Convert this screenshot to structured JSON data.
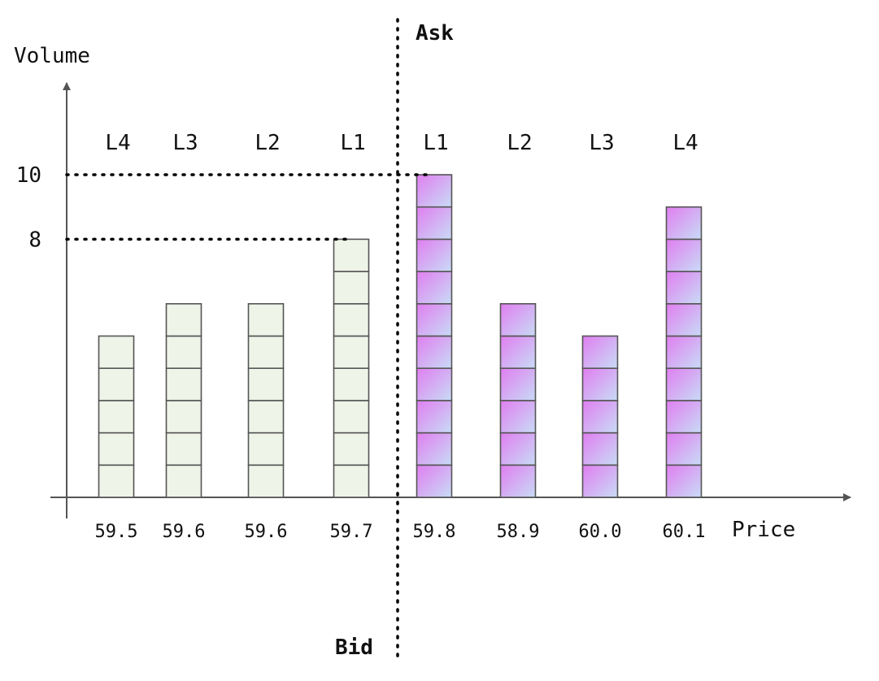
{
  "chart_data": {
    "type": "bar",
    "xlabel": "Price",
    "ylabel": "Volume",
    "side_labels": {
      "ask": "Ask",
      "bid": "Bid"
    },
    "y_ticks": [
      {
        "value": 10,
        "label": "10"
      },
      {
        "value": 8,
        "label": "8"
      }
    ],
    "series": [
      {
        "name": "Bid",
        "color_fill": "#eef4e8",
        "stroke": "#555555",
        "bars": [
          {
            "level": "L4",
            "price": "59.5",
            "volume": 5
          },
          {
            "level": "L3",
            "price": "59.6",
            "volume": 6
          },
          {
            "level": "L2",
            "price": "59.6",
            "volume": 6
          },
          {
            "level": "L1",
            "price": "59.7",
            "volume": 8
          }
        ]
      },
      {
        "name": "Ask",
        "gradient": [
          "#e07ef0",
          "#c8dcf6"
        ],
        "stroke": "#555555",
        "bars": [
          {
            "level": "L1",
            "price": "59.8",
            "volume": 10
          },
          {
            "level": "L2",
            "price": "58.9",
            "volume": 6
          },
          {
            "level": "L3",
            "price": "60.0",
            "volume": 5
          },
          {
            "level": "L4",
            "price": "60.1",
            "volume": 9
          }
        ]
      }
    ]
  }
}
